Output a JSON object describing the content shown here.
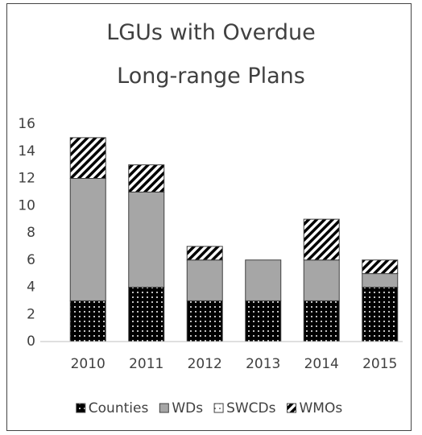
{
  "chart_data": {
    "type": "bar",
    "stacked": true,
    "title": "LGUs with Overdue Long-range Plans",
    "categories": [
      "2010",
      "2011",
      "2012",
      "2013",
      "2014",
      "2015"
    ],
    "series": [
      {
        "name": "Counties",
        "color": "#000000",
        "pattern": "dots",
        "values": [
          3,
          4,
          3,
          3,
          3,
          4
        ]
      },
      {
        "name": "WDs",
        "color": "#a6a6a6",
        "pattern": "none",
        "values": [
          9,
          7,
          3,
          3,
          3,
          1
        ]
      },
      {
        "name": "SWCDs",
        "color": "#ffffff",
        "pattern": "dots",
        "values": [
          0,
          0,
          0,
          0,
          0,
          0
        ]
      },
      {
        "name": "WMOs",
        "color": "#ffffff",
        "pattern": "stripes",
        "values": [
          3,
          2,
          1,
          0,
          3,
          1
        ]
      }
    ],
    "ylim": [
      0,
      16
    ],
    "yticks": [
      0,
      2,
      4,
      6,
      8,
      10,
      12,
      14,
      16
    ],
    "grid": false,
    "legend": "bottom"
  }
}
